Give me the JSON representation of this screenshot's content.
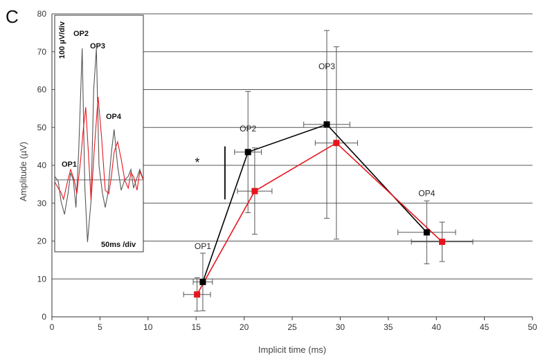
{
  "panel_label": "C",
  "chart_data": {
    "type": "line",
    "title": "",
    "xlabel": "Implicit time (ms)",
    "ylabel": "Amplitude (µV)",
    "xlim": [
      0,
      50
    ],
    "ylim": [
      0,
      80
    ],
    "x_ticks": [
      0,
      5,
      10,
      15,
      20,
      25,
      30,
      35,
      40,
      45,
      50
    ],
    "y_ticks": [
      0,
      10,
      20,
      30,
      40,
      50,
      60,
      70,
      80
    ],
    "grid": "horizontal",
    "legend": "none",
    "series": [
      {
        "color": "#000000",
        "points": [
          {
            "x": 15.7,
            "y": 9.2,
            "xerr": 1.0,
            "yerr": 7.6
          },
          {
            "x": 20.4,
            "y": 43.5,
            "xerr": 1.4,
            "yerr": 16.0
          },
          {
            "x": 28.6,
            "y": 50.8,
            "xerr": 2.4,
            "yerr": 24.8
          },
          {
            "x": 39.0,
            "y": 22.3,
            "xerr": 3.0,
            "yerr": 8.3
          }
        ]
      },
      {
        "color": "#e8141c",
        "points": [
          {
            "x": 15.1,
            "y": 5.9,
            "xerr": 1.4,
            "yerr": 4.4
          },
          {
            "x": 21.1,
            "y": 33.2,
            "xerr": 1.8,
            "yerr": 11.4
          },
          {
            "x": 29.6,
            "y": 45.9,
            "xerr": 2.2,
            "yerr": 25.4
          },
          {
            "x": 40.6,
            "y": 19.8,
            "xerr": 3.2,
            "yerr": 5.2
          }
        ]
      }
    ],
    "annotations": [
      {
        "text": "OP1",
        "x": 15.7
      },
      {
        "text": "OP2",
        "x": 20.4
      },
      {
        "text": "OP3",
        "x": 28.6
      },
      {
        "text": "OP4",
        "x": 39.0
      }
    ],
    "significance": {
      "text": "*",
      "x": 18.0,
      "y_range": [
        31,
        45
      ]
    }
  },
  "inset": {
    "amplitude_scale": "100 µV/div",
    "time_scale": "50ms /div",
    "peak_labels": [
      "OP1",
      "OP2",
      "OP3",
      "OP4"
    ],
    "trace_colors": [
      "#555555",
      "#e8141c"
    ]
  }
}
